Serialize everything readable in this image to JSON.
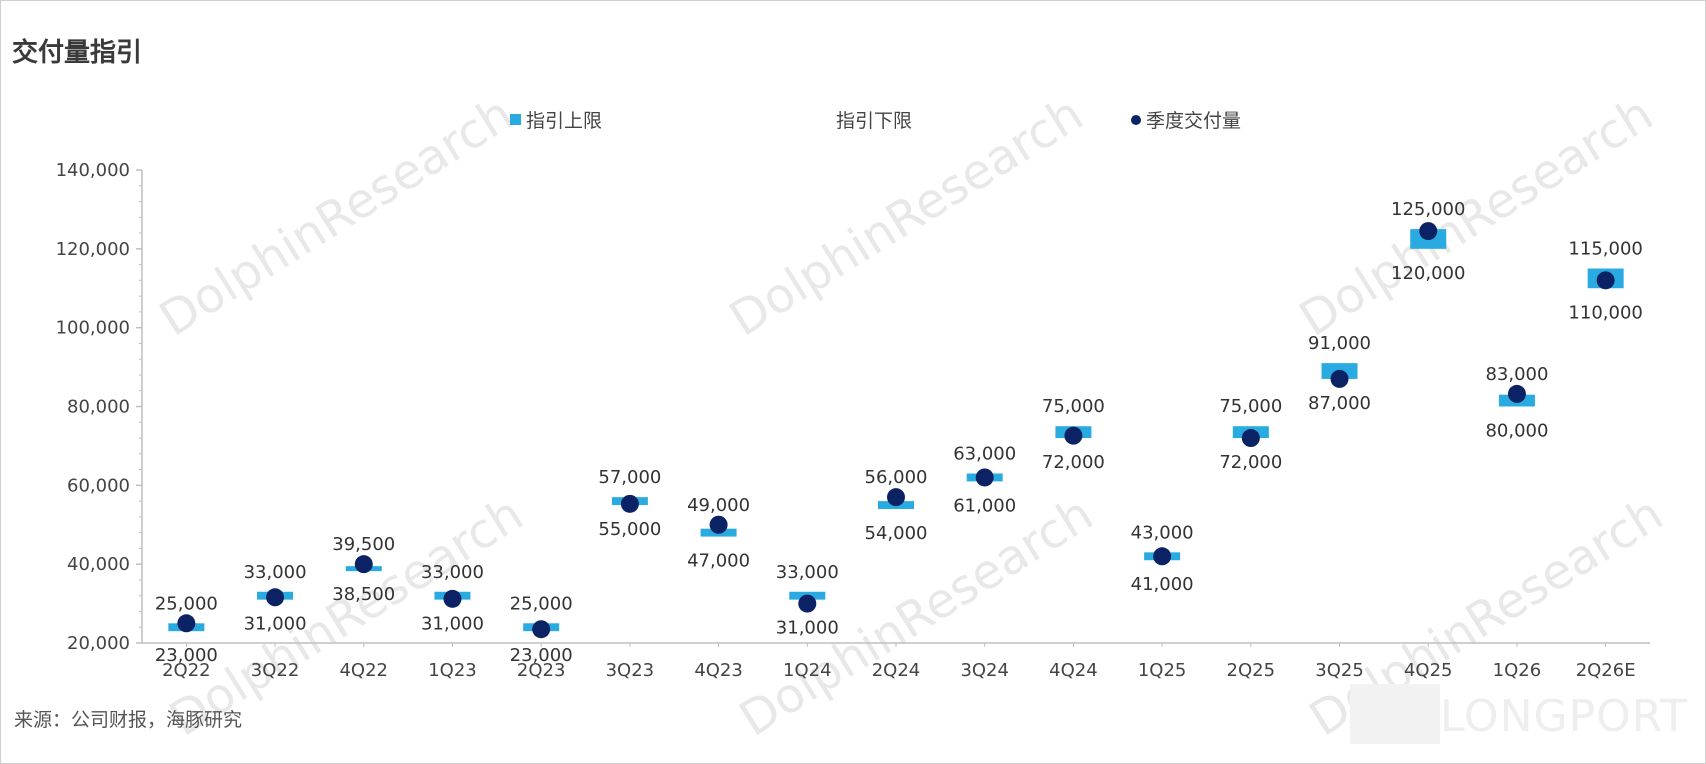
{
  "title": "交付量指引",
  "source": "来源：公司财报，海豚研究",
  "watermark": "DolphinResearch",
  "watermark_brand": "LONGPORT",
  "legend": {
    "upper": "指引上限",
    "lower": "指引下限",
    "actual": "季度交付量"
  },
  "colors": {
    "upper": "#29ABE2",
    "lower": "#29ABE2",
    "actual": "#0B2265",
    "axis": "#bfbfbf",
    "text": "#444444"
  },
  "chart_data": {
    "type": "scatter",
    "title": "交付量指引",
    "ylim": [
      20000,
      140000
    ],
    "yticks": [
      20000,
      40000,
      60000,
      80000,
      100000,
      120000,
      140000
    ],
    "ytick_labels": [
      "20,000",
      "40,000",
      "60,000",
      "80,000",
      "100,000",
      "120,000",
      "140,000"
    ],
    "categories": [
      "2Q22",
      "3Q22",
      "4Q22",
      "1Q23",
      "2Q23",
      "3Q23",
      "4Q23",
      "1Q24",
      "2Q24",
      "3Q24",
      "4Q24",
      "1Q25",
      "2Q25",
      "3Q25",
      "4Q25",
      "1Q26",
      "2Q26E"
    ],
    "series": [
      {
        "name": "指引上限",
        "values": [
          25000,
          33000,
          39500,
          33000,
          25000,
          57000,
          49000,
          33000,
          56000,
          63000,
          75000,
          43000,
          75000,
          91000,
          125000,
          83000,
          115000
        ]
      },
      {
        "name": "指引下限",
        "values": [
          23000,
          31000,
          38500,
          31000,
          23000,
          55000,
          47000,
          31000,
          54000,
          61000,
          72000,
          41000,
          72000,
          87000,
          120000,
          80000,
          110000
        ]
      },
      {
        "name": "季度交付量",
        "values": [
          25000,
          31600,
          40000,
          31200,
          23500,
          55300,
          50000,
          30000,
          57000,
          62000,
          72600,
          42000,
          72000,
          87000,
          124500,
          83200,
          112000
        ]
      }
    ],
    "labels_upper": [
      "25,000",
      "33,000",
      "39,500",
      "33,000",
      "25,000",
      "57,000",
      "49,000",
      "33,000",
      "56,000",
      "63,000",
      "75,000",
      "43,000",
      "75,000",
      "91,000",
      "125,000",
      "83,000",
      "115,000"
    ],
    "labels_lower": [
      "23,000",
      "31,000",
      "38,500",
      "31,000",
      "23,000",
      "55,000",
      "47,000",
      "31,000",
      "54,000",
      "61,000",
      "72,000",
      "41,000",
      "72,000",
      "87,000",
      "120,000",
      "80,000",
      "110,000"
    ],
    "grid": false,
    "legend_position": "top"
  }
}
